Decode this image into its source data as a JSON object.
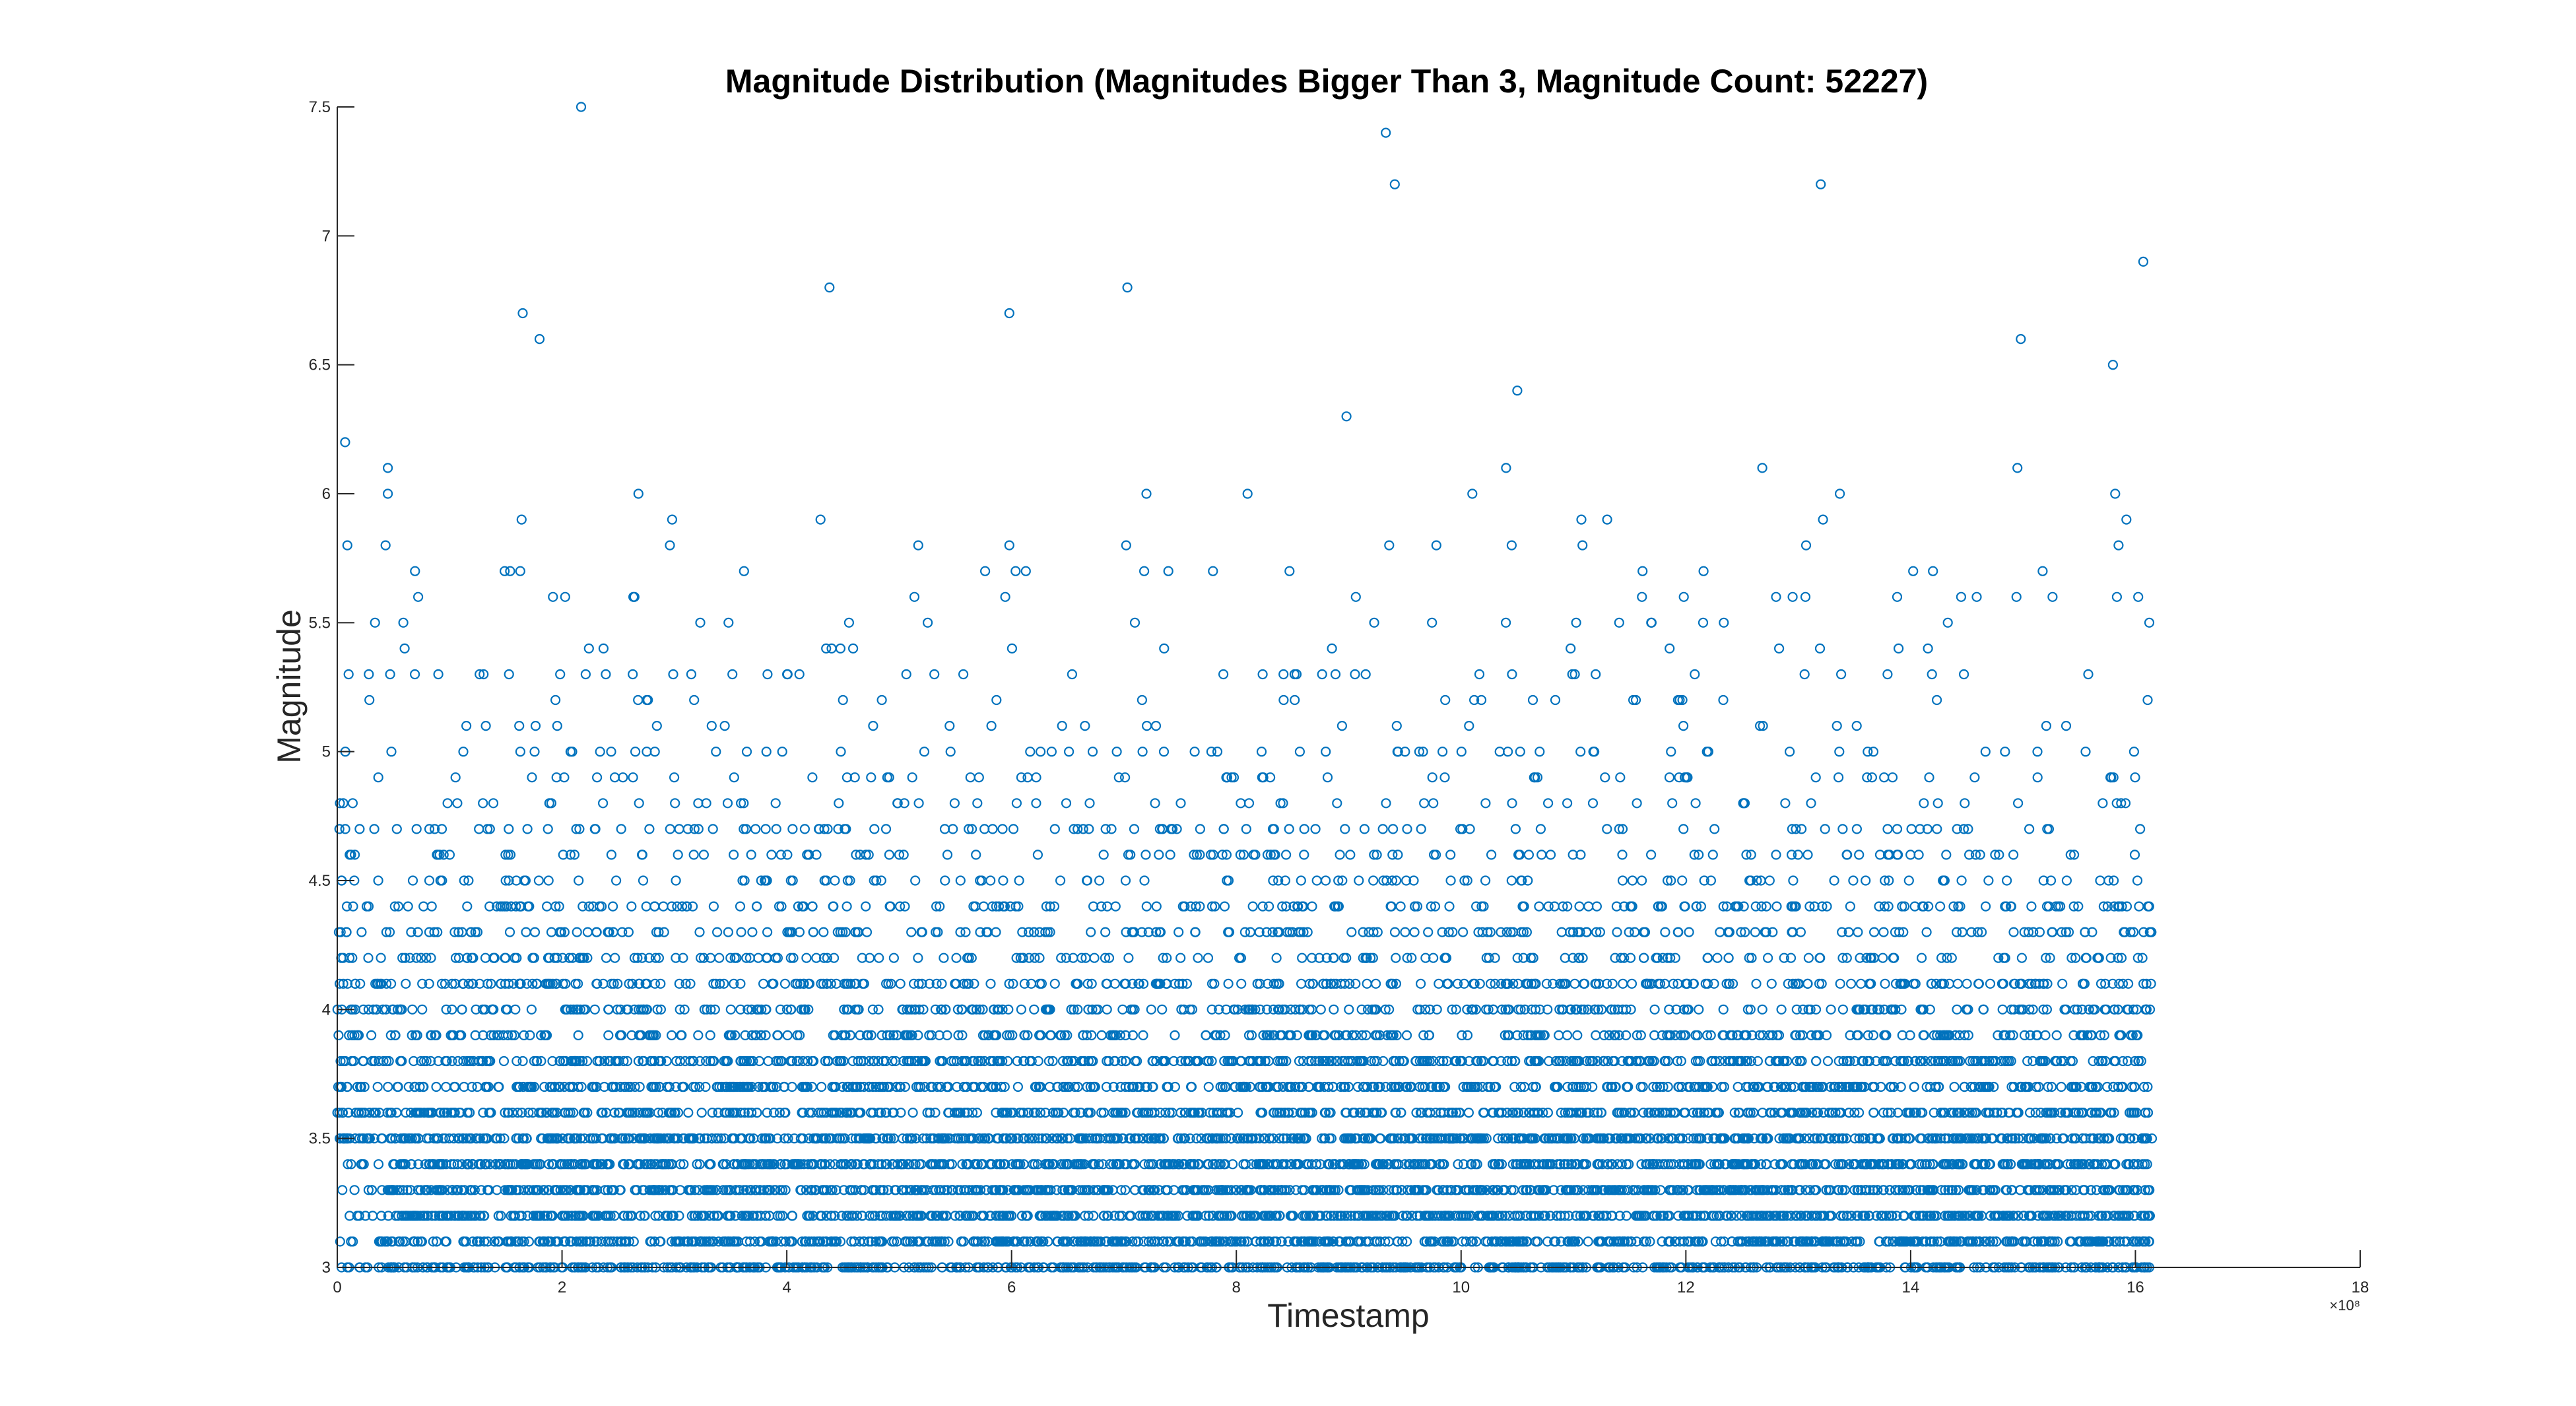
{
  "chart_data": {
    "type": "scatter",
    "title": "Magnitude Distribution (Magnitudes Bigger Than 3, Magnitude Count: 52227)",
    "xlabel": "Timestamp",
    "ylabel": "Magnitude",
    "x_exponent_label": "×10⁸",
    "xlim": [
      0,
      18
    ],
    "ylim": [
      3,
      7.5
    ],
    "x_ticks": [
      0,
      2,
      4,
      6,
      8,
      10,
      12,
      14,
      16,
      18
    ],
    "y_ticks": [
      3,
      3.5,
      4,
      4.5,
      5,
      5.5,
      6,
      6.5,
      7,
      7.5
    ],
    "x_tick_labels": [
      "0",
      "2",
      "4",
      "6",
      "8",
      "10",
      "12",
      "14",
      "16",
      "18"
    ],
    "y_tick_labels": [
      "3",
      "3.5",
      "4",
      "4.5",
      "5",
      "5.5",
      "6",
      "6.5",
      "7",
      "7.5"
    ],
    "grid": false,
    "marker": "circle-open",
    "color": "#0072bd",
    "x_data_range": [
      0,
      16.15
    ],
    "band_magnitude_step": 0.1,
    "highlight_points": [
      {
        "x": 2.17,
        "y": 7.5
      },
      {
        "x": 9.33,
        "y": 7.4
      },
      {
        "x": 9.41,
        "y": 7.2
      },
      {
        "x": 13.2,
        "y": 7.2
      },
      {
        "x": 16.07,
        "y": 6.9
      },
      {
        "x": 4.38,
        "y": 6.8
      },
      {
        "x": 7.03,
        "y": 6.8
      },
      {
        "x": 1.65,
        "y": 6.7
      },
      {
        "x": 5.98,
        "y": 6.7
      },
      {
        "x": 1.8,
        "y": 6.6
      },
      {
        "x": 14.98,
        "y": 6.6
      },
      {
        "x": 15.8,
        "y": 6.5
      },
      {
        "x": 10.5,
        "y": 6.4
      },
      {
        "x": 8.98,
        "y": 6.3
      },
      {
        "x": 0.07,
        "y": 6.2
      },
      {
        "x": 0.45,
        "y": 6.1
      },
      {
        "x": 10.4,
        "y": 6.1
      },
      {
        "x": 12.68,
        "y": 6.1
      },
      {
        "x": 14.95,
        "y": 6.1
      },
      {
        "x": 0.45,
        "y": 6.0
      },
      {
        "x": 2.68,
        "y": 6.0
      },
      {
        "x": 7.2,
        "y": 6.0
      },
      {
        "x": 8.1,
        "y": 6.0
      },
      {
        "x": 10.1,
        "y": 6.0
      },
      {
        "x": 13.37,
        "y": 6.0
      },
      {
        "x": 15.82,
        "y": 6.0
      },
      {
        "x": 1.64,
        "y": 5.9
      },
      {
        "x": 2.98,
        "y": 5.9
      },
      {
        "x": 4.3,
        "y": 5.9
      },
      {
        "x": 11.07,
        "y": 5.9
      },
      {
        "x": 11.3,
        "y": 5.9
      },
      {
        "x": 13.22,
        "y": 5.9
      },
      {
        "x": 15.92,
        "y": 5.9
      },
      {
        "x": 0.09,
        "y": 5.8
      },
      {
        "x": 0.43,
        "y": 5.8
      },
      {
        "x": 2.96,
        "y": 5.8
      },
      {
        "x": 5.17,
        "y": 5.8
      },
      {
        "x": 5.98,
        "y": 5.8
      },
      {
        "x": 7.02,
        "y": 5.8
      },
      {
        "x": 9.36,
        "y": 5.8
      },
      {
        "x": 9.78,
        "y": 5.8
      },
      {
        "x": 10.45,
        "y": 5.8
      },
      {
        "x": 11.08,
        "y": 5.8
      },
      {
        "x": 13.07,
        "y": 5.8
      },
      {
        "x": 15.85,
        "y": 5.8
      }
    ]
  }
}
